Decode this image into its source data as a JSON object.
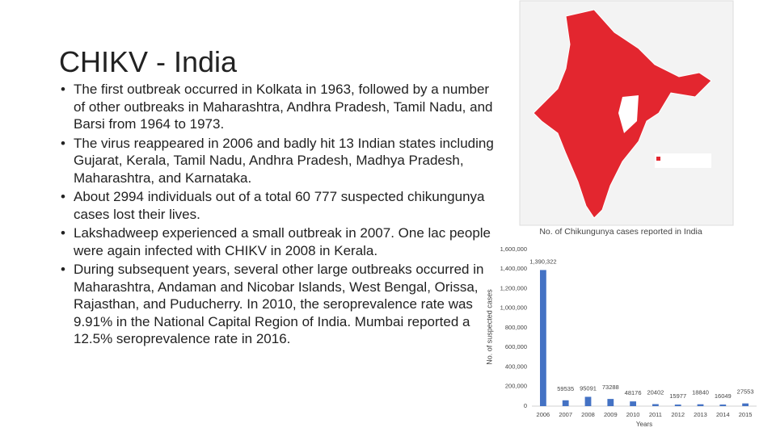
{
  "slide": {
    "title": "CHIKV - India",
    "bullets": [
      "The first outbreak occurred in Kolkata in 1963, followed by a number of other outbreaks in Maharashtra, Andhra Pradesh, Tamil Nadu, and Barsi from 1964 to 1973.",
      "The virus reappeared in 2006 and badly hit 13 Indian states including Gujarat, Kerala, Tamil Nadu, Andhra Pradesh, Madhya Pradesh, Maharashtra, and Karnataka.",
      "About 2994 individuals out of a total 60 777 suspected chikungunya cases lost their lives.",
      "Lakshadweep experienced a small outbreak in 2007. One lac people were again infected with CHIKV in 2008 in Kerala.",
      "During subsequent years, several other large outbreaks occurred in Maharashtra, Andaman and Nicobar Islands, West Bengal, Orissa, Rajasthan, and Puducherry. In 2010, the seroprevalence rate was 9.91% in the National Capital Region of India. Mumbai reported a 12.5% seroprevalence rate in 2016."
    ]
  },
  "chart_data": {
    "type": "bar",
    "title": "No. of Chikungunya cases reported in India",
    "y_label": "No. of suspected cases",
    "x_label": "Years",
    "categories": [
      "2006",
      "2007",
      "2008",
      "2009",
      "2010",
      "2011",
      "2012",
      "2013",
      "2014",
      "2015"
    ],
    "values": [
      1390322,
      59535,
      95091,
      73288,
      48176,
      20402,
      15977,
      18840,
      16049,
      27553
    ],
    "value_labels": [
      "1,390,322",
      "59535",
      "95091",
      "73288",
      "48176",
      "20402",
      "15977",
      "18840",
      "16049",
      "27553"
    ],
    "color": "#4472c4",
    "ylim": [
      0,
      1600000
    ],
    "yticks": [
      0,
      {
        "value": 200000,
        "label": "200,000"
      },
      {
        "value": 400000,
        "label": "400,000"
      },
      {
        "value": 600000,
        "label": "600,000"
      },
      {
        "value": 800000,
        "label": "800,000"
      },
      {
        "value": 1000000,
        "label": "1,000,000"
      },
      {
        "value": 1200000,
        "label": "1,200,000"
      },
      {
        "value": 1400000,
        "label": "1,400,000"
      },
      {
        "value": 1600000,
        "label": "1,600,000"
      }
    ]
  }
}
